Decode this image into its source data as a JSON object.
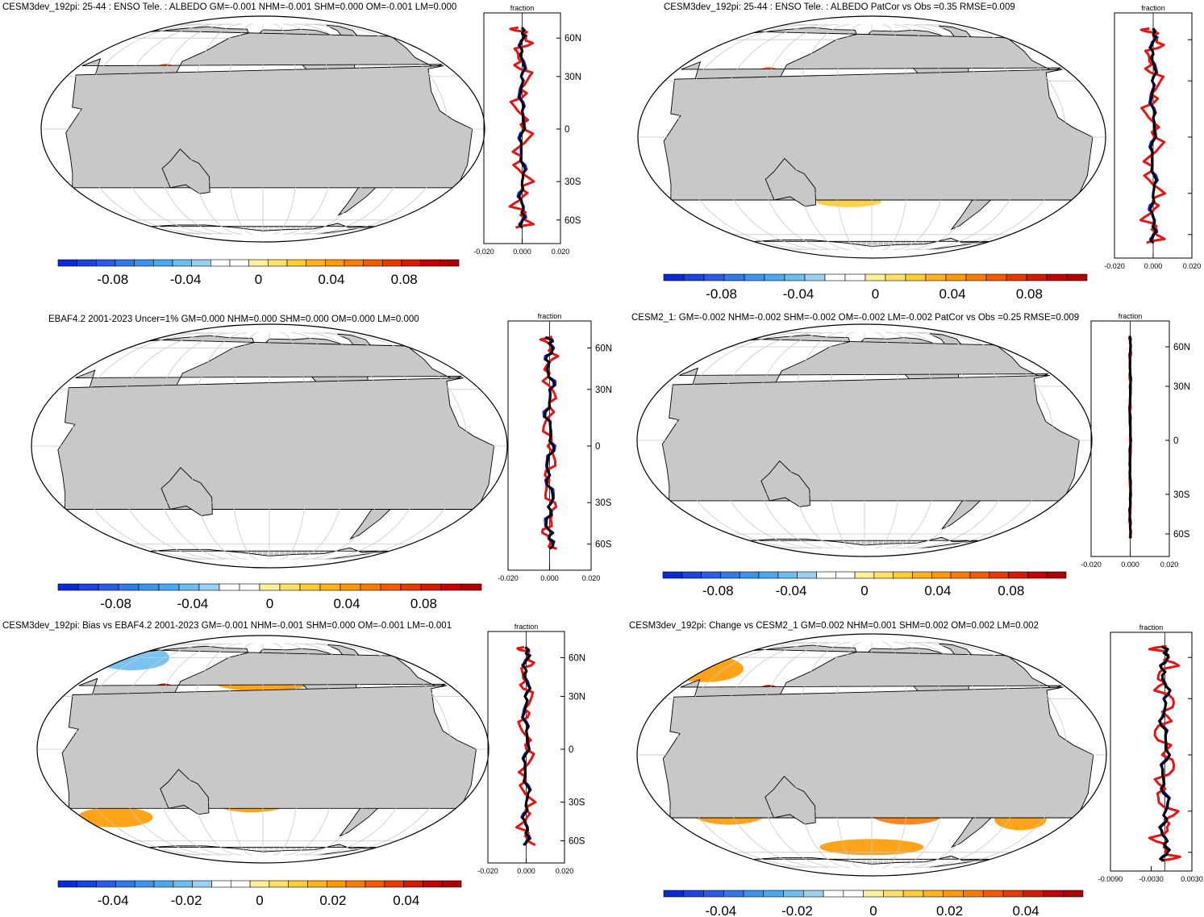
{
  "panels": [
    {
      "id": "model",
      "title": "CESM3dev_192pi: 25-44 : ENSO Tele. : ALBEDO GM=-0.001 NHM=-0.001 SHM=0.000 OM=-0.001 LM=0.000",
      "colorbar_labels": [
        "-0.08",
        "-0.04",
        "0",
        "0.04",
        "0.08"
      ],
      "colorbar_range": [
        -0.11,
        0.11
      ],
      "profile_unit": "fraction",
      "profile_xticks": [
        "-0.020",
        "0.000",
        "0.020"
      ],
      "lat_labels": [
        "60N",
        "30N",
        "0",
        "30S",
        "60S"
      ]
    },
    {
      "id": "model-patcor",
      "title": "CESM3dev_192pi: 25-44 : ENSO Tele. : ALBEDO PatCor vs Obs =0.35 RMSE=0.009",
      "colorbar_labels": [
        "-0.08",
        "-0.04",
        "0",
        "0.04",
        "0.08"
      ],
      "colorbar_range": [
        -0.11,
        0.11
      ],
      "profile_unit": "fraction",
      "profile_xticks": [
        "-0.020",
        "0.000",
        "0.020"
      ],
      "lat_labels": []
    },
    {
      "id": "obs",
      "title": "EBAF4.2 2001-2023 Uncer=1% GM=0.000 NHM=0.000 SHM=0.000 OM=0.000 LM=0.000",
      "colorbar_labels": [
        "-0.08",
        "-0.04",
        "0",
        "0.04",
        "0.08"
      ],
      "colorbar_range": [
        -0.11,
        0.11
      ],
      "profile_unit": "fraction",
      "profile_xticks": [
        "-0.020",
        "0.000",
        "0.020"
      ],
      "lat_labels": [
        "60N",
        "30N",
        "0",
        "30S",
        "60S"
      ]
    },
    {
      "id": "cesm2",
      "title": "CESM2_1: GM=-0.002 NHM=-0.002 SHM=-0.002 OM=-0.002 LM=-0.002 PatCor vs Obs =0.25 RMSE=0.009",
      "colorbar_labels": [
        "-0.08",
        "-0.04",
        "0",
        "0.04",
        "0.08"
      ],
      "colorbar_range": [
        -0.11,
        0.11
      ],
      "profile_unit": "fraction",
      "profile_xticks": [
        "-0.020",
        "0.000",
        "0.020"
      ],
      "lat_labels": [
        "60N",
        "30N",
        "0",
        "30S",
        "60S"
      ]
    },
    {
      "id": "bias",
      "title": "CESM3dev_192pi: Bias vs EBAF4.2 2001-2023 GM=-0.001 NHM=-0.001 SHM=0.000 OM=-0.001 LM=-0.001",
      "colorbar_labels": [
        "-0.04",
        "-0.02",
        "0",
        "0.02",
        "0.04"
      ],
      "colorbar_range": [
        -0.055,
        0.055
      ],
      "profile_unit": "fraction",
      "profile_xticks": [
        "-0.020",
        "0.000",
        "0.020"
      ],
      "lat_labels": [
        "60N",
        "30N",
        "0",
        "30S",
        "60S"
      ]
    },
    {
      "id": "change",
      "title": "CESM3dev_192pi: Change vs CESM2_1 GM=0.002 NHM=0.001 SHM=0.002 OM=0.002 LM=0.002",
      "colorbar_labels": [
        "-0.04",
        "-0.02",
        "0",
        "0.02",
        "0.04"
      ],
      "colorbar_range": [
        -0.055,
        0.055
      ],
      "profile_unit": "fraction",
      "profile_xticks": [
        "-0.0090",
        "-0.0030",
        "0.0030"
      ],
      "lat_labels": []
    }
  ],
  "colors": {
    "ocean": "#ffffff",
    "land": "#c8c8c8",
    "grid": "#c8c8c8",
    "profile_model": "#1f1fe6",
    "profile_obs": "#e61414",
    "profile_other": "#000000",
    "cmap": [
      "#0a2ad6",
      "#1a43e0",
      "#2a5ce8",
      "#2f7ae8",
      "#3a93ec",
      "#4aaaf0",
      "#6cbdf0",
      "#98d0f0",
      "#ffffff",
      "#ffffff",
      "#fff09a",
      "#ffe066",
      "#ffcc33",
      "#ffb21a",
      "#ff9900",
      "#ff7a00",
      "#f55a00",
      "#e83a00",
      "#d61a00",
      "#c40000",
      "#b00000"
    ]
  }
}
